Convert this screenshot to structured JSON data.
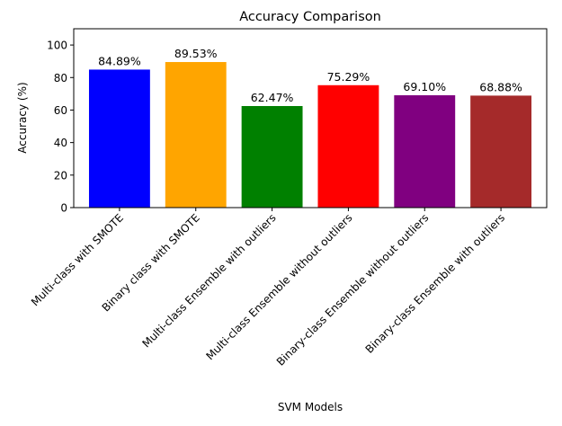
{
  "chart_data": {
    "type": "bar",
    "title": "Accuracy Comparison",
    "xlabel": "SVM Models",
    "ylabel": "Accuracy (%)",
    "categories": [
      "Multi-class with SMOTE",
      "Binary class with SMOTE",
      "Multi-class Ensemble with outliers",
      "Multi-class Ensemble without outliers",
      "Binary-class Ensemble without outliers",
      "Binary-class Ensemble with outliers"
    ],
    "values": [
      84.89,
      89.53,
      62.47,
      75.29,
      69.1,
      68.88
    ],
    "value_labels": [
      "84.89%",
      "89.53%",
      "62.47%",
      "75.29%",
      "69.10%",
      "68.88%"
    ],
    "colors": [
      "#0000ff",
      "#ffa500",
      "#008000",
      "#ff0000",
      "#800080",
      "#a52a2a"
    ],
    "ylim": [
      0,
      110
    ],
    "yticks": [
      0,
      20,
      40,
      60,
      80,
      100
    ],
    "ytick_labels": [
      "0",
      "20",
      "40",
      "60",
      "80",
      "100"
    ],
    "grid": false,
    "legend": "none"
  }
}
